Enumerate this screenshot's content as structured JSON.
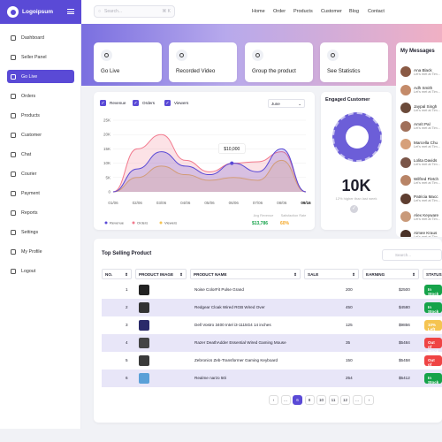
{
  "brand": {
    "name": "Logoipsum"
  },
  "search": {
    "placeholder": "Search...",
    "shortcut": "⌘ K"
  },
  "nav": [
    "Home",
    "Order",
    "Products",
    "Customer",
    "Blog",
    "Contact"
  ],
  "sidebar": [
    "Dashboard",
    "Seller Panel",
    "Go Live",
    "Orders",
    "Products",
    "Customer",
    "Chat",
    "Courier",
    "Payment",
    "Reports",
    "Settings",
    "My Profile",
    "Logout"
  ],
  "quick": [
    "Go Live",
    "Recorded Video",
    "Group the product",
    "See Statistics"
  ],
  "messages": {
    "title": "My Messages",
    "items": [
      {
        "name": "Ana Black",
        "text": "Let's met at Tim..."
      },
      {
        "name": "Adh Smith",
        "text": "Let's met at Tim..."
      },
      {
        "name": "Jaypal Singh",
        "text": "Let's met at Tim..."
      },
      {
        "name": "Amrit Pal",
        "text": "Let's met at Tim..."
      },
      {
        "name": "Marcella Chu",
        "text": "Let's met at Tim..."
      },
      {
        "name": "Lolita Davids",
        "text": "Let's met at Tim..."
      },
      {
        "name": "Wilfred Fletch",
        "text": "Let's met at Tim..."
      },
      {
        "name": "Patricia Macc",
        "text": "Let's met at Tim..."
      },
      {
        "name": "Alex Keyware",
        "text": "Let's met at Tim..."
      },
      {
        "name": "Aimee Kraus",
        "text": "Let's met at Tim..."
      }
    ]
  },
  "chart": {
    "legend_top": [
      "Revenue",
      "Orders",
      "Viewers"
    ],
    "range": "June",
    "legend_bottom": [
      "Revenue",
      "Orders",
      "Viewers"
    ],
    "tooltip": "$10,000",
    "avg_label": "Avg Revenue",
    "avg_value": "$13,786",
    "sat_label": "Satisfaction Rate",
    "sat_value": "60%"
  },
  "chart_data": {
    "type": "area",
    "x": [
      "01/06",
      "02/06",
      "03/06",
      "04/06",
      "05/06",
      "06/06",
      "07/06",
      "08/06",
      "09/16"
    ],
    "yticks": [
      "0",
      "5K",
      "10K",
      "15K",
      "20K",
      "25K"
    ],
    "ylim": [
      0,
      25000
    ],
    "series": [
      {
        "name": "Revenue",
        "values": [
          0,
          8000,
          14000,
          9000,
          6000,
          10000,
          7000,
          15000,
          0
        ],
        "color": "#5a4ad6"
      },
      {
        "name": "Orders",
        "values": [
          0,
          15000,
          20000,
          11000,
          7000,
          10000,
          10500,
          14000,
          0
        ],
        "color": "#f27a8e"
      },
      {
        "name": "Viewers",
        "values": [
          0,
          5000,
          9000,
          6000,
          4000,
          5000,
          4000,
          11000,
          0
        ],
        "color": "#f5c451"
      }
    ]
  },
  "engaged": {
    "title": "Engaged Customer",
    "value": "10K",
    "sub": "12% higher than last week"
  },
  "table": {
    "title": "Top Selling Product",
    "search": "Search...",
    "headers": [
      "NO.",
      "PRODUCT IMAGE",
      "PRODUCT NAME",
      "SALE",
      "EARNING",
      "STATUS"
    ],
    "rows": [
      {
        "no": "1",
        "name": "Noise ColorFit Pulse Grand",
        "sale": "200",
        "earning": "$2500",
        "status": "In Stock",
        "color": "#16a34a"
      },
      {
        "no": "2",
        "name": "Redgear Cloak Wired RGB Wired Over",
        "sale": "450",
        "earning": "$4580",
        "status": "In Stock",
        "color": "#16a34a"
      },
      {
        "no": "3",
        "name": "Dell Vostro 3400 Intel i3-1115G4 14 inches",
        "sale": "125",
        "earning": "$9856",
        "status": "10% Left",
        "color": "#f5c451"
      },
      {
        "no": "4",
        "name": "Razer DeathAdder Essential Wired Gaming Mouse",
        "sale": "35",
        "earning": "$5484",
        "status": "Out of Stock",
        "color": "#ef4444"
      },
      {
        "no": "5",
        "name": "Zebronics Zeb-Transformer Gaming Keyboard",
        "sale": "150",
        "earning": "$5458",
        "status": "Out of Stock",
        "color": "#ef4444"
      },
      {
        "no": "6",
        "name": "Realme narzo 50i",
        "sale": "254",
        "earning": "$5412",
        "status": "In Stock",
        "color": "#16a34a"
      }
    ]
  },
  "pagination": [
    "‹",
    "...",
    "6",
    "8",
    "10",
    "11",
    "12",
    "...",
    "›"
  ]
}
